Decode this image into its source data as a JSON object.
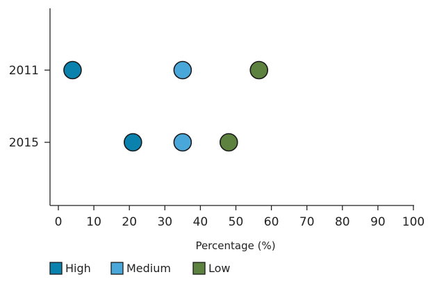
{
  "chart_data": {
    "type": "scatter",
    "title": "",
    "xlabel": "Percentage (%)",
    "ylabel": "",
    "xlim": [
      0,
      100
    ],
    "x_ticks": [
      0,
      10,
      20,
      30,
      40,
      50,
      60,
      70,
      80,
      90,
      100
    ],
    "categories": [
      "2011",
      "2015"
    ],
    "grid": false,
    "legend_position": "bottom-left",
    "series": [
      {
        "name": "High",
        "color": "#0a82ad",
        "values": [
          4,
          21
        ]
      },
      {
        "name": "Medium",
        "color": "#4aa7d9",
        "values": [
          35,
          35
        ]
      },
      {
        "name": "Low",
        "color": "#5d813e",
        "values": [
          56.5,
          48
        ]
      }
    ]
  }
}
